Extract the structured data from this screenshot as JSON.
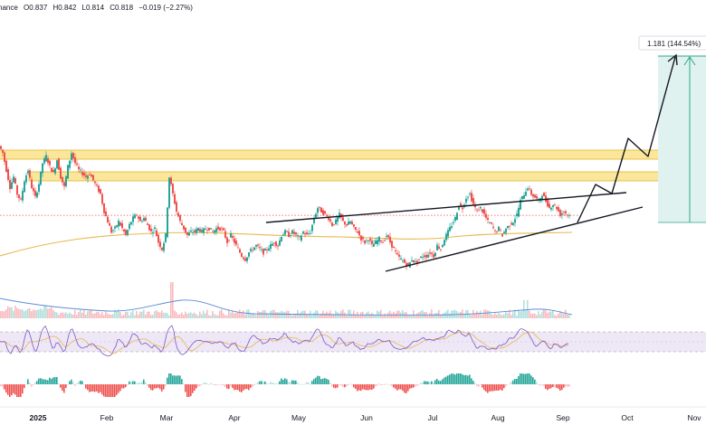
{
  "ohlc_legend": {
    "symbol_fragment": "nance",
    "open": "O0.837",
    "high": "H0.842",
    "low": "L0.814",
    "close": "C0.818",
    "change": "−0.019 (−2.27%)"
  },
  "target_label": "1.181 (144.54%)",
  "colors": {
    "up": "#26a69a",
    "down": "#ef5350",
    "zone_fill": "#fbe79a",
    "zone_stroke": "#e5b532",
    "ma": "#e8b84e",
    "rsi": "#7e57c2",
    "rsi_band": "#ede7f6",
    "target_fill": "#e0f2ef",
    "target_stroke": "#2aa889",
    "volume_ma": "#5b8dd6"
  },
  "chart_data": {
    "type": "candlestick",
    "x_labels": [
      "2025",
      "Feb",
      "Mar",
      "Apr",
      "May",
      "Jun",
      "Jul",
      "Aug",
      "Sep",
      "Oct",
      "Nov"
    ],
    "last_close": 0.818,
    "target_value": 1.181,
    "target_change_pct": 144.54,
    "indicators": [
      "volume",
      "rsi",
      "macd_histogram"
    ],
    "price_path": [
      [
        0,
        1.02
      ],
      [
        4,
        1.0
      ],
      [
        8,
        0.95
      ],
      [
        12,
        0.9
      ],
      [
        16,
        0.93
      ],
      [
        20,
        0.88
      ],
      [
        24,
        0.86
      ],
      [
        28,
        0.92
      ],
      [
        32,
        0.95
      ],
      [
        36,
        0.9
      ],
      [
        40,
        0.87
      ],
      [
        44,
        0.91
      ],
      [
        48,
        0.97
      ],
      [
        52,
        0.99
      ],
      [
        56,
        0.96
      ],
      [
        60,
        0.94
      ],
      [
        64,
        0.98
      ],
      [
        68,
        0.93
      ],
      [
        72,
        0.9
      ],
      [
        76,
        0.96
      ],
      [
        80,
        1.0
      ],
      [
        84,
        0.97
      ],
      [
        88,
        0.95
      ],
      [
        92,
        0.94
      ],
      [
        96,
        0.93
      ],
      [
        100,
        0.94
      ],
      [
        104,
        0.92
      ],
      [
        108,
        0.9
      ],
      [
        112,
        0.88
      ],
      [
        116,
        0.83
      ],
      [
        120,
        0.8
      ],
      [
        124,
        0.77
      ],
      [
        128,
        0.78
      ],
      [
        132,
        0.8
      ],
      [
        136,
        0.78
      ],
      [
        140,
        0.76
      ],
      [
        144,
        0.79
      ],
      [
        148,
        0.81
      ],
      [
        152,
        0.82
      ],
      [
        156,
        0.8
      ],
      [
        160,
        0.81
      ],
      [
        164,
        0.79
      ],
      [
        168,
        0.77
      ],
      [
        172,
        0.78
      ],
      [
        176,
        0.74
      ],
      [
        180,
        0.72
      ],
      [
        184,
        0.76
      ],
      [
        188,
        0.93
      ],
      [
        192,
        0.88
      ],
      [
        196,
        0.83
      ],
      [
        200,
        0.8
      ],
      [
        204,
        0.78
      ],
      [
        208,
        0.76
      ],
      [
        212,
        0.77
      ],
      [
        216,
        0.77
      ],
      [
        220,
        0.78
      ],
      [
        224,
        0.77
      ],
      [
        228,
        0.78
      ],
      [
        232,
        0.78
      ],
      [
        236,
        0.77
      ],
      [
        240,
        0.78
      ],
      [
        244,
        0.78
      ],
      [
        248,
        0.77
      ],
      [
        252,
        0.74
      ],
      [
        256,
        0.76
      ],
      [
        260,
        0.74
      ],
      [
        264,
        0.72
      ],
      [
        268,
        0.7
      ],
      [
        272,
        0.69
      ],
      [
        276,
        0.71
      ],
      [
        280,
        0.72
      ],
      [
        284,
        0.73
      ],
      [
        288,
        0.72
      ],
      [
        292,
        0.71
      ],
      [
        296,
        0.72
      ],
      [
        300,
        0.73
      ],
      [
        304,
        0.74
      ],
      [
        308,
        0.73
      ],
      [
        312,
        0.76
      ],
      [
        316,
        0.77
      ],
      [
        320,
        0.76
      ],
      [
        324,
        0.77
      ],
      [
        328,
        0.76
      ],
      [
        332,
        0.75
      ],
      [
        336,
        0.77
      ],
      [
        340,
        0.76
      ],
      [
        344,
        0.77
      ],
      [
        348,
        0.81
      ],
      [
        352,
        0.84
      ],
      [
        356,
        0.83
      ],
      [
        360,
        0.82
      ],
      [
        364,
        0.81
      ],
      [
        368,
        0.79
      ],
      [
        372,
        0.8
      ],
      [
        376,
        0.82
      ],
      [
        380,
        0.8
      ],
      [
        384,
        0.79
      ],
      [
        388,
        0.8
      ],
      [
        392,
        0.78
      ],
      [
        396,
        0.77
      ],
      [
        400,
        0.75
      ],
      [
        404,
        0.74
      ],
      [
        408,
        0.75
      ],
      [
        412,
        0.73
      ],
      [
        416,
        0.74
      ],
      [
        420,
        0.75
      ],
      [
        424,
        0.74
      ],
      [
        428,
        0.76
      ],
      [
        432,
        0.74
      ],
      [
        436,
        0.72
      ],
      [
        440,
        0.7
      ],
      [
        444,
        0.69
      ],
      [
        448,
        0.68
      ],
      [
        452,
        0.67
      ],
      [
        456,
        0.69
      ],
      [
        460,
        0.68
      ],
      [
        464,
        0.69
      ],
      [
        468,
        0.7
      ],
      [
        472,
        0.7
      ],
      [
        476,
        0.71
      ],
      [
        480,
        0.7
      ],
      [
        484,
        0.73
      ],
      [
        488,
        0.72
      ],
      [
        492,
        0.75
      ],
      [
        496,
        0.77
      ],
      [
        500,
        0.79
      ],
      [
        504,
        0.81
      ],
      [
        508,
        0.85
      ],
      [
        512,
        0.84
      ],
      [
        516,
        0.87
      ],
      [
        520,
        0.88
      ],
      [
        524,
        0.85
      ],
      [
        528,
        0.83
      ],
      [
        532,
        0.84
      ],
      [
        536,
        0.82
      ],
      [
        540,
        0.8
      ],
      [
        544,
        0.79
      ],
      [
        548,
        0.77
      ],
      [
        552,
        0.78
      ],
      [
        556,
        0.76
      ],
      [
        560,
        0.78
      ],
      [
        564,
        0.79
      ],
      [
        568,
        0.8
      ],
      [
        572,
        0.82
      ],
      [
        576,
        0.86
      ],
      [
        580,
        0.88
      ],
      [
        584,
        0.9
      ],
      [
        588,
        0.88
      ],
      [
        592,
        0.87
      ],
      [
        596,
        0.86
      ],
      [
        600,
        0.88
      ],
      [
        604,
        0.86
      ],
      [
        608,
        0.84
      ],
      [
        612,
        0.85
      ],
      [
        616,
        0.84
      ],
      [
        620,
        0.82
      ],
      [
        624,
        0.83
      ],
      [
        628,
        0.82
      ],
      [
        630,
        0.818
      ]
    ]
  }
}
